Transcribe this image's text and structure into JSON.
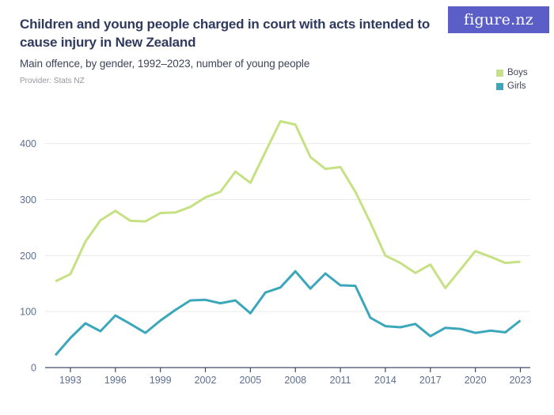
{
  "header": {
    "title": "Children and young people charged in court with acts intended to cause injury in New Zealand",
    "subtitle": "Main offence, by gender, 1992–2023, number of young people",
    "provider": "Provider: Stats NZ",
    "logo_text": "figure.nz"
  },
  "legend": [
    {
      "label": "Boys",
      "color": "#c6e183"
    },
    {
      "label": "Girls",
      "color": "#3ba7ba"
    }
  ],
  "chart_data": {
    "type": "line",
    "title": "Children and young people charged in court with acts intended to cause injury in New Zealand",
    "subtitle": "Main offence, by gender, 1992–2023, number of young people",
    "xlabel": "",
    "ylabel": "number of young people",
    "x": [
      1992,
      1993,
      1994,
      1995,
      1996,
      1997,
      1998,
      1999,
      2000,
      2001,
      2002,
      2003,
      2004,
      2005,
      2006,
      2007,
      2008,
      2009,
      2010,
      2011,
      2012,
      2013,
      2014,
      2015,
      2016,
      2017,
      2018,
      2019,
      2020,
      2021,
      2022,
      2023
    ],
    "series": [
      {
        "name": "Boys",
        "color": "#c6e183",
        "values": [
          154,
          167,
          225,
          263,
          280,
          262,
          261,
          276,
          277,
          287,
          304,
          314,
          350,
          330,
          385,
          440,
          434,
          376,
          355,
          358,
          314,
          259,
          200,
          187,
          169,
          184,
          142,
          175,
          208,
          198,
          187,
          189
        ]
      },
      {
        "name": "Girls",
        "color": "#3ba7ba",
        "values": [
          22,
          53,
          79,
          65,
          93,
          78,
          62,
          84,
          103,
          120,
          121,
          115,
          120,
          97,
          134,
          143,
          172,
          141,
          168,
          147,
          146,
          89,
          74,
          72,
          78,
          56,
          71,
          69,
          62,
          66,
          63,
          84
        ]
      }
    ],
    "xticks": [
      1993,
      1996,
      1999,
      2002,
      2005,
      2008,
      2011,
      2014,
      2017,
      2020,
      2023
    ],
    "yticks": [
      0,
      100,
      200,
      300,
      400
    ],
    "xlim": [
      1992,
      2023
    ],
    "ylim": [
      0,
      450
    ],
    "grid": "horizontal",
    "legend_position": "top-right"
  },
  "colors": {
    "boys_line": "#c6e183",
    "girls_line": "#3ba7ba",
    "title_text": "#2f3a5e",
    "axis_labels": "#5d6e90",
    "gridline": "#eaeaea",
    "axis_line": "#3d4a66",
    "logo_bg": "#5a5ec6"
  }
}
